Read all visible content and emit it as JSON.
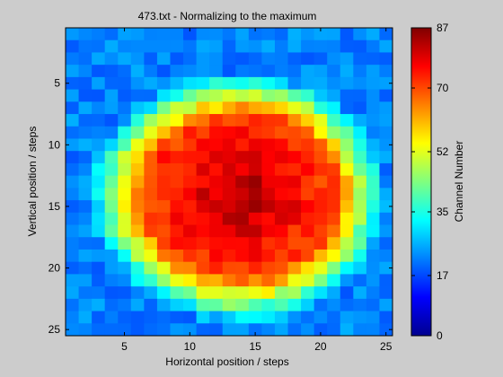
{
  "chart_data": {
    "type": "heatmap",
    "title": "473.txt - Normalizing to the maximum",
    "xlabel": "Horizontal position / steps",
    "ylabel": "Vertical position / steps",
    "colorbar_label": "Channel Number",
    "colormap": "jet",
    "xlim": [
      0.5,
      25.5
    ],
    "ylim": [
      0.5,
      25.5
    ],
    "y_reversed": true,
    "x_ticks": [
      5,
      10,
      15,
      20,
      25
    ],
    "y_ticks": [
      5,
      10,
      15,
      20,
      25
    ],
    "clim": [
      0,
      87
    ],
    "colorbar_ticks": [
      0,
      17,
      35,
      52,
      70,
      87
    ],
    "blob": {
      "center_x": 14,
      "center_y": 14,
      "radius_x_left": 9.5,
      "radius_x_right": 9.0,
      "radius_y_top": 8.0,
      "radius_y_bottom": 8.5,
      "background": 22,
      "peak": 84
    }
  }
}
